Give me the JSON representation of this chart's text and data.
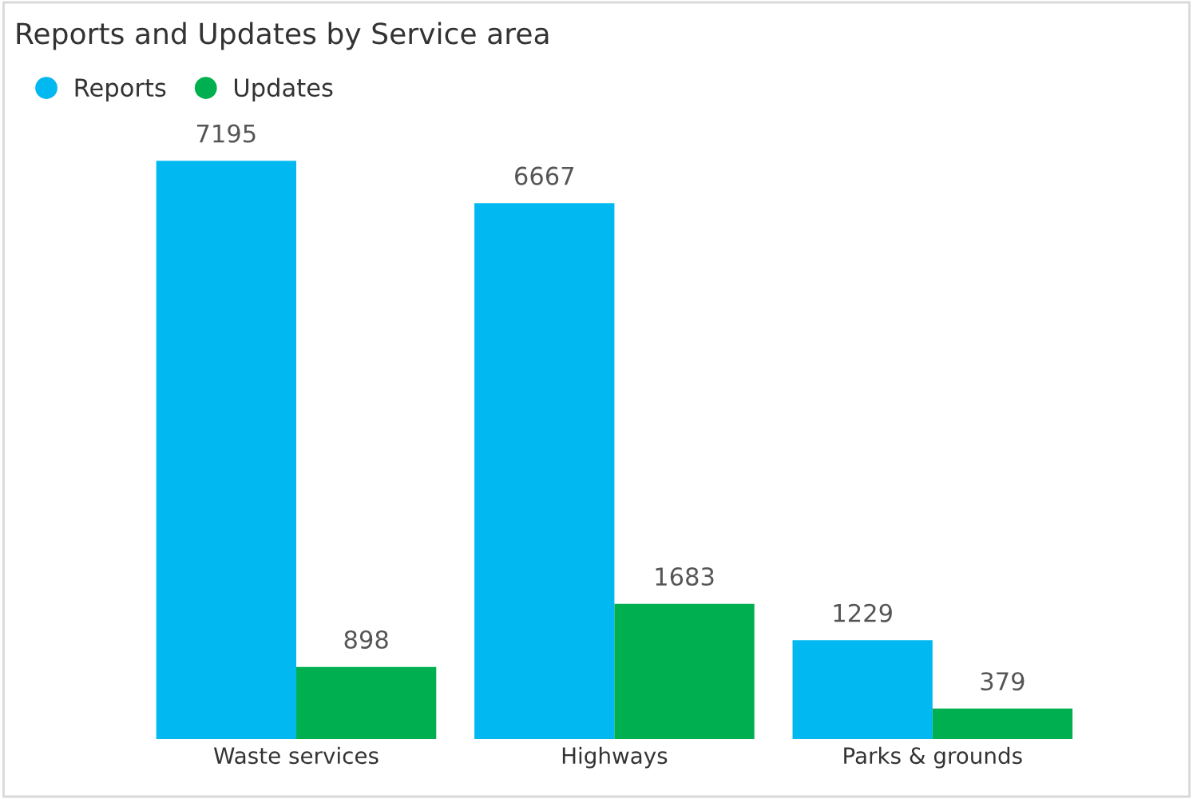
{
  "chart_data": {
    "type": "bar",
    "title": "Reports and Updates by Service area",
    "categories": [
      "Waste services",
      "Highways",
      "Parks & grounds"
    ],
    "series": [
      {
        "name": "Reports",
        "color": "#01b8f0",
        "values": [
          7195,
          6667,
          1229
        ]
      },
      {
        "name": "Updates",
        "color": "#00b050",
        "values": [
          898,
          1683,
          379
        ]
      }
    ],
    "data_labels": true,
    "legend": "top left"
  }
}
